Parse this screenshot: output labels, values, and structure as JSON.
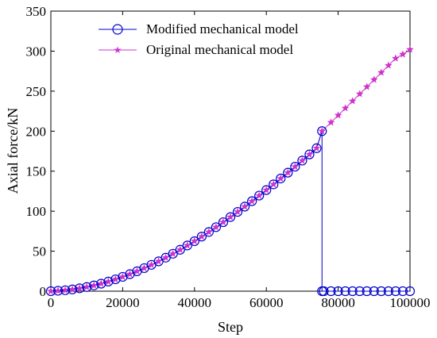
{
  "chart_data": {
    "type": "line",
    "xlabel": "Step",
    "ylabel": "Axial force/kN",
    "xlim": [
      0,
      100000
    ],
    "ylim": [
      0,
      350
    ],
    "x_ticks": [
      0,
      20000,
      40000,
      60000,
      80000,
      100000
    ],
    "y_ticks": [
      0,
      50,
      100,
      150,
      200,
      250,
      300,
      350
    ],
    "x_tick_labels": [
      "0",
      "20000",
      "40000",
      "60000",
      "80000",
      "100000"
    ],
    "y_tick_labels": [
      "0",
      "50",
      "100",
      "150",
      "200",
      "250",
      "300",
      "350"
    ],
    "grid": false,
    "legend_position": "top-center",
    "series": [
      {
        "name": "Modified mechanical model",
        "color": "#0000cc",
        "marker": "circle",
        "x": [
          0,
          2000,
          4000,
          6000,
          8000,
          10000,
          12000,
          14000,
          16000,
          18000,
          20000,
          22000,
          24000,
          26000,
          28000,
          30000,
          32000,
          34000,
          36000,
          38000,
          40000,
          42000,
          44000,
          46000,
          48000,
          50000,
          52000,
          54000,
          56000,
          58000,
          60000,
          62000,
          64000,
          66000,
          68000,
          70000,
          72000,
          74000,
          75500,
          75500,
          76000,
          78000,
          80000,
          82000,
          84000,
          86000,
          88000,
          90000,
          92000,
          94000,
          96000,
          98000,
          100000
        ],
        "y": [
          0,
          0.5,
          1.2,
          2.2,
          3.6,
          5.2,
          7.2,
          9.4,
          12,
          14.8,
          17.9,
          21.3,
          24.9,
          28.8,
          32.9,
          37.3,
          41.9,
          46.8,
          51.8,
          57.1,
          62.5,
          68.2,
          74,
          80,
          86.2,
          92.6,
          99.1,
          105.7,
          112.5,
          119.4,
          126.4,
          133.5,
          140.8,
          148.1,
          155.6,
          163.2,
          170.9,
          178.7,
          200,
          0,
          0,
          0,
          0,
          0,
          0,
          0,
          0,
          0,
          0,
          0,
          0,
          0,
          0
        ]
      },
      {
        "name": "Original mechanical model",
        "color": "#cc33cc",
        "marker": "star",
        "x": [
          0,
          2000,
          4000,
          6000,
          8000,
          10000,
          12000,
          14000,
          16000,
          18000,
          20000,
          22000,
          24000,
          26000,
          28000,
          30000,
          32000,
          34000,
          36000,
          38000,
          40000,
          42000,
          44000,
          46000,
          48000,
          50000,
          52000,
          54000,
          56000,
          58000,
          60000,
          62000,
          64000,
          66000,
          68000,
          70000,
          72000,
          74000,
          75500,
          78000,
          80000,
          82000,
          84000,
          86000,
          88000,
          90000,
          92000,
          94000,
          96000,
          98000,
          100000
        ],
        "y": [
          0,
          0.5,
          1.2,
          2.2,
          3.6,
          5.2,
          7.2,
          9.4,
          12,
          14.8,
          17.9,
          21.3,
          24.9,
          28.8,
          32.9,
          37.3,
          41.9,
          46.8,
          51.8,
          57.1,
          62.5,
          68.2,
          74,
          80,
          86.2,
          92.6,
          99.1,
          105.7,
          112.5,
          119.4,
          126.4,
          133.5,
          140.8,
          148.1,
          155.6,
          163.2,
          170.9,
          178.7,
          200,
          210.9,
          219.8,
          228.7,
          237.6,
          246.5,
          255.4,
          264.3,
          273.2,
          282.1,
          291,
          296,
          302
        ]
      }
    ]
  }
}
